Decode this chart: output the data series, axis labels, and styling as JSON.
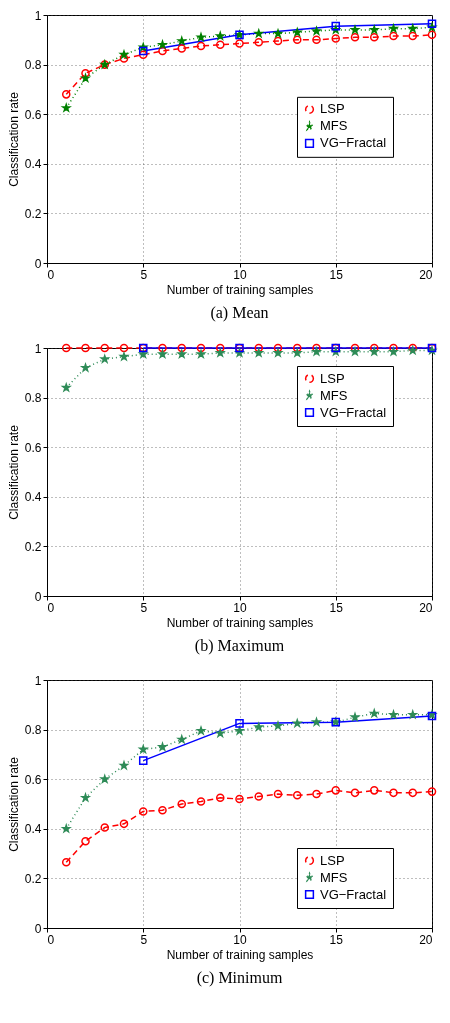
{
  "chart_data": [
    {
      "type": "line",
      "title": "(a) Mean",
      "xlabel": "Number of training samples",
      "ylabel": "Classification rate",
      "x": [
        1,
        2,
        3,
        4,
        5,
        6,
        7,
        8,
        9,
        10,
        11,
        12,
        13,
        14,
        15,
        16,
        17,
        18,
        19,
        20
      ],
      "xlim": [
        0,
        20
      ],
      "xticks": [
        0,
        5,
        10,
        15,
        20
      ],
      "ylim": [
        0,
        1
      ],
      "yticks": [
        0,
        0.2,
        0.4,
        0.6,
        0.8,
        1
      ],
      "grid": true,
      "legend": "right",
      "series": [
        {
          "name": "LSP",
          "color": "#ff0000",
          "marker": "circle",
          "line_style": "dashed",
          "values": [
            0.68,
            0.765,
            0.8,
            0.825,
            0.84,
            0.855,
            0.865,
            0.875,
            0.88,
            0.885,
            0.89,
            0.895,
            0.9,
            0.9,
            0.905,
            0.91,
            0.91,
            0.915,
            0.915,
            0.92
          ]
        },
        {
          "name": "MFS",
          "color": "#008000",
          "marker": "star",
          "line_style": "dotted",
          "values": [
            0.625,
            0.745,
            0.8,
            0.84,
            0.87,
            0.88,
            0.895,
            0.91,
            0.915,
            0.92,
            0.925,
            0.925,
            0.93,
            0.935,
            0.94,
            0.94,
            0.94,
            0.945,
            0.945,
            0.95
          ]
        },
        {
          "name": "VG−Fractal",
          "color": "#0000ff",
          "marker": "square",
          "line_style": "solid",
          "x": [
            5,
            10,
            15,
            20
          ],
          "values": [
            0.855,
            0.92,
            0.955,
            0.965
          ]
        }
      ]
    },
    {
      "type": "line",
      "title": "(b) Maximum",
      "xlabel": "Number of training samples",
      "ylabel": "Classification rate",
      "x": [
        1,
        2,
        3,
        4,
        5,
        6,
        7,
        8,
        9,
        10,
        11,
        12,
        13,
        14,
        15,
        16,
        17,
        18,
        19,
        20
      ],
      "xlim": [
        0,
        20
      ],
      "xticks": [
        0,
        5,
        10,
        15,
        20
      ],
      "ylim": [
        0,
        1
      ],
      "yticks": [
        0,
        0.2,
        0.4,
        0.6,
        0.8,
        1
      ],
      "grid": true,
      "legend": "top right",
      "series": [
        {
          "name": "LSP",
          "color": "#ff0000",
          "marker": "circle",
          "line_style": "dashed",
          "values": [
            1,
            1,
            1,
            1,
            1,
            1,
            1,
            1,
            1,
            1,
            1,
            1,
            1,
            1,
            1,
            1,
            1,
            1,
            1,
            1
          ]
        },
        {
          "name": "MFS",
          "color": "#2e8b57",
          "marker": "star",
          "line_style": "dotted",
          "values": [
            0.84,
            0.92,
            0.955,
            0.965,
            0.975,
            0.975,
            0.975,
            0.975,
            0.98,
            0.98,
            0.98,
            0.98,
            0.98,
            0.985,
            0.985,
            0.985,
            0.985,
            0.985,
            0.99,
            0.99
          ]
        },
        {
          "name": "VG−Fractal",
          "color": "#0000ff",
          "marker": "square",
          "line_style": "solid",
          "x": [
            5,
            10,
            15,
            20
          ],
          "values": [
            1,
            1,
            1,
            1
          ]
        }
      ]
    },
    {
      "type": "line",
      "title": "(c) Minimum",
      "xlabel": "Number of training samples",
      "ylabel": "Classification rate",
      "x": [
        1,
        2,
        3,
        4,
        5,
        6,
        7,
        8,
        9,
        10,
        11,
        12,
        13,
        14,
        15,
        16,
        17,
        18,
        19,
        20
      ],
      "xlim": [
        0,
        20
      ],
      "xticks": [
        0,
        5,
        10,
        15,
        20
      ],
      "ylim": [
        0,
        1
      ],
      "yticks": [
        0,
        0.2,
        0.4,
        0.6,
        0.8,
        1
      ],
      "grid": true,
      "legend": "bottom right",
      "series": [
        {
          "name": "LSP",
          "color": "#ff0000",
          "marker": "circle",
          "line_style": "dashed",
          "values": [
            0.265,
            0.35,
            0.405,
            0.42,
            0.47,
            0.475,
            0.5,
            0.51,
            0.525,
            0.52,
            0.53,
            0.54,
            0.535,
            0.54,
            0.555,
            0.545,
            0.555,
            0.545,
            0.545,
            0.55
          ]
        },
        {
          "name": "MFS",
          "color": "#2e8b57",
          "marker": "star",
          "line_style": "dotted",
          "values": [
            0.4,
            0.525,
            0.6,
            0.655,
            0.72,
            0.73,
            0.76,
            0.795,
            0.785,
            0.795,
            0.81,
            0.815,
            0.825,
            0.83,
            0.83,
            0.85,
            0.865,
            0.86,
            0.86,
            0.86
          ]
        },
        {
          "name": "VG−Fractal",
          "color": "#0000ff",
          "marker": "square",
          "line_style": "solid",
          "x": [
            5,
            10,
            15,
            20
          ],
          "values": [
            0.675,
            0.825,
            0.83,
            0.855
          ]
        }
      ]
    }
  ]
}
